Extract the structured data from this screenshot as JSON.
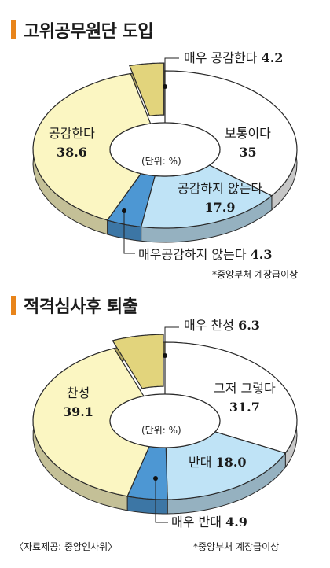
{
  "chart_data": [
    {
      "type": "pie",
      "title": "고위공무원단 도입",
      "center_label": "(단위: %)",
      "note": "*중앙부처 계장급이상",
      "slices": [
        {
          "label": "보통이다",
          "value": 35,
          "display": "35",
          "color": "#ffffff"
        },
        {
          "label": "공감하지 않는다",
          "value": 17.9,
          "display": "17.9",
          "color": "#bfe3f6"
        },
        {
          "label": "매우공감하지 않는다",
          "value": 4.3,
          "display": "4.3",
          "color": "#4d97d3"
        },
        {
          "label": "공감한다",
          "value": 38.6,
          "display": "38.6",
          "color": "#fbf6c2"
        },
        {
          "label": "매우 공감한다",
          "value": 4.2,
          "display": "4.2",
          "color": "#e2d47c"
        }
      ]
    },
    {
      "type": "pie",
      "title": "적격심사후 퇴출",
      "center_label": "(단위: %)",
      "note": "*중앙부처 계장급이상",
      "source": "〈자료제공: 중앙인사위〉",
      "slices": [
        {
          "label": "그저 그렇다",
          "value": 31.7,
          "display": "31.7",
          "color": "#ffffff"
        },
        {
          "label": "반대",
          "value": 18.0,
          "display": "18.0",
          "color": "#bfe3f6"
        },
        {
          "label": "매우 반대",
          "value": 4.9,
          "display": "4.9",
          "color": "#4d97d3"
        },
        {
          "label": "찬성",
          "value": 39.1,
          "display": "39.1",
          "color": "#fbf6c2"
        },
        {
          "label": "매우 찬성",
          "value": 6.3,
          "display": "6.3",
          "color": "#e2d47c"
        }
      ]
    }
  ]
}
